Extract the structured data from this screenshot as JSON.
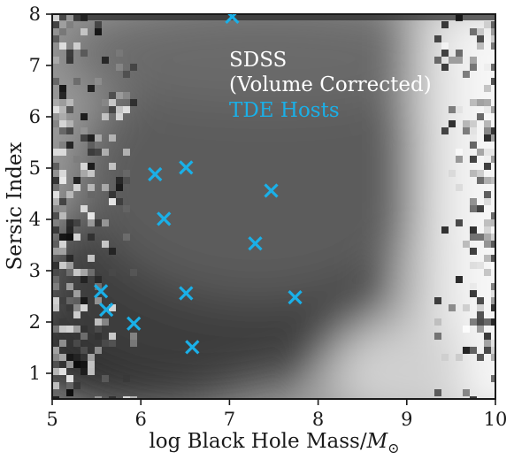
{
  "chart_data": {
    "type": "heatmap",
    "title": "",
    "xlabel": "log Black Hole Mass/",
    "xlabel_symbol": "M",
    "xlabel_subscript": "⊙",
    "ylabel": "Sersic Index",
    "xlim": [
      5,
      10
    ],
    "ylim": [
      0.5,
      8
    ],
    "xticks": [
      "5",
      "6",
      "7",
      "8",
      "9",
      "10"
    ],
    "yticks": [
      "1",
      "2",
      "3",
      "4",
      "5",
      "6",
      "7",
      "8"
    ],
    "colormap": "greys (darker = higher density)",
    "background_series": {
      "name": "SDSS",
      "subtitle": "(Volume Corrected)",
      "color": "#ffffff"
    },
    "series": [
      {
        "name": "TDE Hosts",
        "marker": "x",
        "color": "#1ab0e8",
        "points": [
          {
            "x": 7.03,
            "y": 7.95
          },
          {
            "x": 6.16,
            "y": 4.88
          },
          {
            "x": 6.51,
            "y": 5.01
          },
          {
            "x": 7.47,
            "y": 4.56
          },
          {
            "x": 6.26,
            "y": 4.01
          },
          {
            "x": 7.29,
            "y": 3.53
          },
          {
            "x": 5.55,
            "y": 2.6
          },
          {
            "x": 6.51,
            "y": 2.56
          },
          {
            "x": 7.74,
            "y": 2.48
          },
          {
            "x": 5.61,
            "y": 2.24
          },
          {
            "x": 5.92,
            "y": 1.97
          },
          {
            "x": 6.58,
            "y": 1.51
          }
        ]
      }
    ],
    "grid": false,
    "legend_position": "top-right (text annotations)"
  }
}
